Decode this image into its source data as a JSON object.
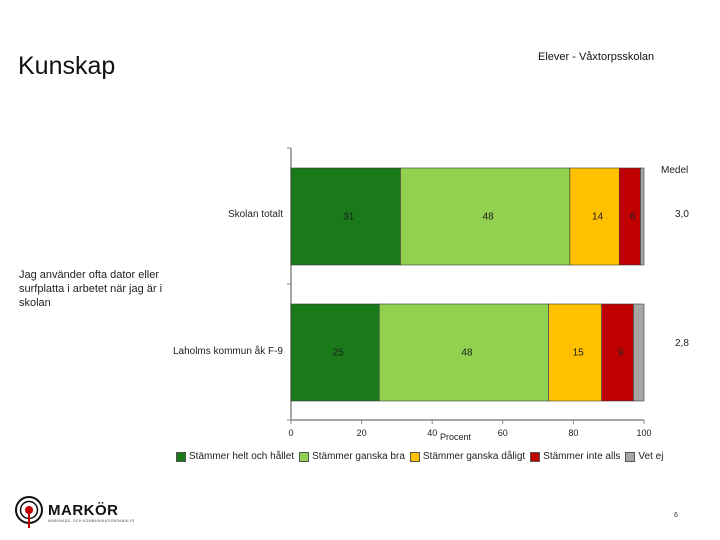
{
  "page": {
    "title": "Kunskap",
    "subtitle": "Elever - Våxtorpsskolan",
    "medel_label": "Medel",
    "question": "Jag använder ofta dator eller surfplatta i arbetet när jag är i skolan",
    "page_number": "6"
  },
  "logo": {
    "name": "MARKÖR",
    "tagline": "MARKNADS- OCH KOMMUNIKATIONSANALYS"
  },
  "colors": {
    "helt": "#1a7a1a",
    "ganska_bra": "#92d050",
    "ganska_daligt": "#ffc000",
    "inte_alls": "#c00000",
    "vet_ej": "#a6a6a6"
  },
  "chart_data": {
    "type": "bar",
    "orientation": "horizontal",
    "stacked": true,
    "categories": [
      "Skolan totalt",
      "Laholms kommun åk F-9"
    ],
    "series": [
      {
        "name": "Stämmer helt och hållet",
        "values": [
          31,
          25
        ],
        "labels": [
          "31",
          "25"
        ]
      },
      {
        "name": "Stämmer ganska bra",
        "values": [
          48,
          48
        ],
        "labels": [
          "48",
          "48"
        ]
      },
      {
        "name": "Stämmer ganska dåligt",
        "values": [
          14,
          15
        ],
        "labels": [
          "14",
          "15"
        ]
      },
      {
        "name": "Stämmer inte alls",
        "values": [
          6,
          9
        ],
        "labels": [
          "6",
          "9"
        ]
      },
      {
        "name": "Vet ej",
        "values": [
          1,
          3
        ],
        "labels": [
          "",
          ""
        ]
      }
    ],
    "medel": [
      "3,0",
      "2,8"
    ],
    "xlabel": "Procent",
    "xlim": [
      0,
      100
    ],
    "xticks": [
      0,
      20,
      40,
      60,
      80,
      100
    ],
    "legend_position": "bottom",
    "grid": false
  }
}
